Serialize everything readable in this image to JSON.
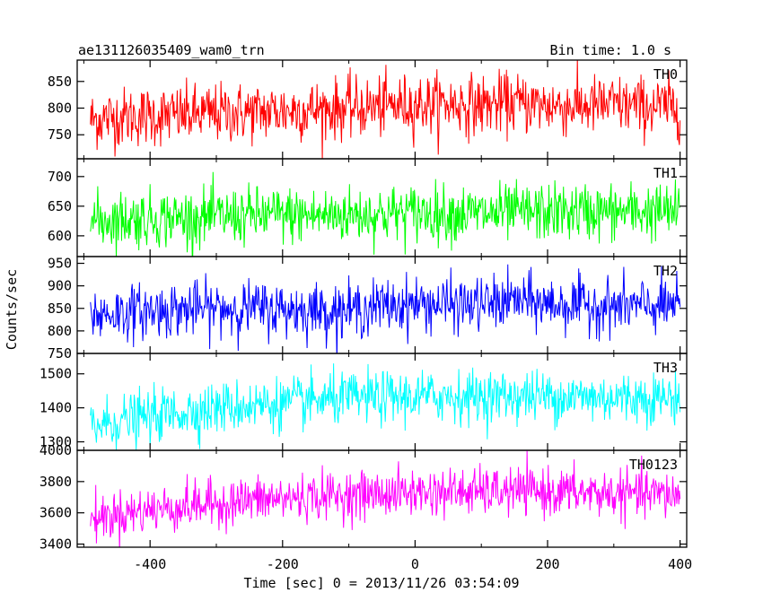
{
  "chart_data": {
    "type": "line",
    "title": "ae131126035409_wam0_trn",
    "subtitle": "Bin time: 1.0 s",
    "xlabel": "Time [sec] 0 = 2013/11/26 03:54:09",
    "ylabel": "Counts/sec",
    "xlim": [
      -510,
      410
    ],
    "x_ticks": [
      -400,
      -200,
      0,
      200,
      400
    ],
    "grid": false,
    "series": [
      {
        "name": "TH0",
        "color": "#ff0000",
        "ylim": [
          705,
          890
        ],
        "y_ticks": [
          750,
          800,
          850
        ],
        "x": [
          -490,
          -450,
          -400,
          -350,
          -300,
          -250,
          -200,
          -150,
          -100,
          -50,
          0,
          50,
          100,
          150,
          200,
          250,
          300,
          350,
          400
        ],
        "values": [
          778,
          783,
          785,
          787,
          790,
          792,
          795,
          797,
          800,
          803,
          807,
          808,
          806,
          810,
          805,
          804,
          806,
          803,
          802
        ],
        "noise": 28
      },
      {
        "name": "TH1",
        "color": "#00ff00",
        "ylim": [
          565,
          730
        ],
        "y_ticks": [
          600,
          650,
          700
        ],
        "x": [
          -490,
          -450,
          -400,
          -350,
          -300,
          -250,
          -200,
          -150,
          -100,
          -50,
          0,
          50,
          100,
          150,
          200,
          250,
          300,
          350,
          400
        ],
        "values": [
          625,
          628,
          630,
          630,
          632,
          634,
          635,
          634,
          636,
          637,
          639,
          638,
          637,
          639,
          640,
          641,
          640,
          641,
          640
        ],
        "noise": 24
      },
      {
        "name": "TH2",
        "color": "#0000ff",
        "ylim": [
          750,
          965
        ],
        "y_ticks": [
          750,
          800,
          850,
          900,
          950
        ],
        "x": [
          -490,
          -450,
          -400,
          -350,
          -300,
          -250,
          -200,
          -150,
          -100,
          -50,
          0,
          50,
          100,
          150,
          200,
          250,
          300,
          350,
          400
        ],
        "values": [
          835,
          840,
          845,
          848,
          850,
          850,
          848,
          846,
          845,
          855,
          860,
          858,
          858,
          868,
          860,
          857,
          855,
          854,
          856
        ],
        "noise": 30
      },
      {
        "name": "TH3",
        "color": "#00ffff",
        "ylim": [
          1275,
          1560
        ],
        "y_ticks": [
          1300,
          1400,
          1500
        ],
        "x": [
          -490,
          -450,
          -400,
          -350,
          -300,
          -250,
          -200,
          -150,
          -100,
          -50,
          0,
          50,
          100,
          150,
          200,
          250,
          300,
          350,
          400
        ],
        "values": [
          1345,
          1360,
          1375,
          1388,
          1398,
          1408,
          1412,
          1420,
          1428,
          1430,
          1432,
          1434,
          1433,
          1435,
          1434,
          1432,
          1430,
          1430,
          1428
        ],
        "noise": 38
      },
      {
        "name": "TH0123",
        "color": "#ff00ff",
        "ylim": [
          3380,
          4000
        ],
        "y_ticks": [
          3400,
          3600,
          3800,
          4000
        ],
        "x": [
          -490,
          -450,
          -400,
          -350,
          -300,
          -250,
          -200,
          -150,
          -100,
          -50,
          0,
          50,
          100,
          150,
          200,
          250,
          300,
          350,
          400
        ],
        "values": [
          3560,
          3590,
          3620,
          3640,
          3660,
          3680,
          3690,
          3705,
          3715,
          3720,
          3730,
          3735,
          3732,
          3738,
          3735,
          3730,
          3720,
          3718,
          3715
        ],
        "noise": 75
      }
    ]
  }
}
